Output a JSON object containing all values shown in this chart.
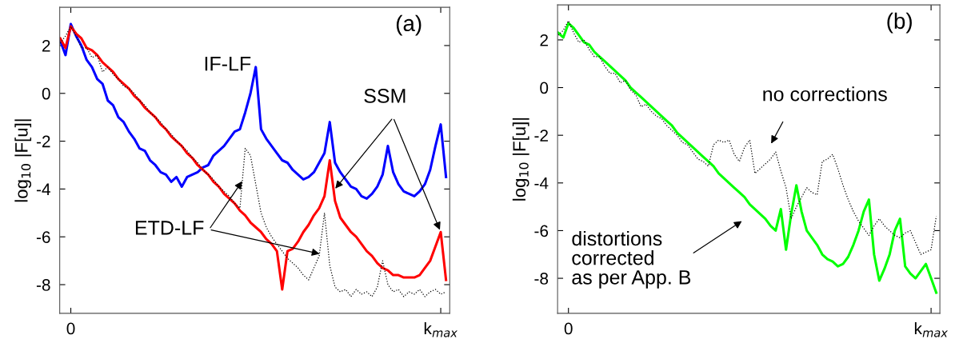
{
  "chart_data": [
    {
      "type": "line",
      "title": "(a)",
      "ylabel": "log$_{10}$ |F[u]|",
      "ylim": [
        -9.2,
        3.6
      ],
      "yticks": [
        -8,
        -6,
        -4,
        -2,
        0,
        2
      ],
      "grid": false,
      "categories": [
        null,
        null,
        "0",
        null,
        null,
        null,
        null,
        null,
        null,
        null,
        null,
        null,
        null,
        null,
        null,
        null,
        null,
        null,
        null,
        null,
        null,
        null,
        null,
        null,
        null,
        null,
        null,
        null,
        null,
        null,
        null,
        null,
        null,
        null,
        null,
        null,
        null,
        null,
        null,
        null,
        null,
        null,
        null,
        null,
        null,
        null,
        null,
        null,
        null,
        null,
        null,
        null,
        null,
        null,
        null,
        null,
        null,
        null,
        null,
        null,
        null,
        null,
        null,
        null,
        null,
        null,
        null,
        null,
        null,
        null,
        null,
        null,
        "k$_{max}$",
        null
      ],
      "series": [
        {
          "color": "#0000ff",
          "line_style": "solid",
          "values": [
            2.2,
            1.6,
            2.9,
            2.4,
            2.0,
            1.4,
            1.1,
            0.6,
            0.4,
            -0.3,
            -0.5,
            -1.0,
            -1.2,
            -1.6,
            -1.9,
            -2.3,
            -2.4,
            -2.8,
            -3.0,
            -3.3,
            -3.4,
            -3.7,
            -3.5,
            -3.9,
            -3.5,
            -3.4,
            -3.3,
            -3.1,
            -3.0,
            -2.6,
            -2.4,
            -2.2,
            -1.9,
            -1.6,
            -1.5,
            -0.8,
            0.0,
            1.1,
            -1.5,
            -1.9,
            -2.2,
            -2.5,
            -2.8,
            -2.9,
            -3.2,
            -3.4,
            -3.6,
            -3.5,
            -3.3,
            -2.9,
            -2.5,
            -1.2,
            -2.9,
            -3.3,
            -3.6,
            -3.9,
            -4.0,
            -4.3,
            -4.4,
            -4.2,
            -3.9,
            -3.4,
            -2.2,
            -3.3,
            -3.8,
            -4.1,
            -4.2,
            -4.3,
            -4.1,
            -3.8,
            -3.2,
            -2.2,
            -1.3,
            -3.5
          ]
        },
        {
          "color": "#ff0000",
          "line_style": "solid",
          "values": [
            2.3,
            1.9,
            2.8,
            2.5,
            2.3,
            1.9,
            1.8,
            1.6,
            1.3,
            1.1,
            0.9,
            0.6,
            0.4,
            0.2,
            -0.1,
            -0.3,
            -0.6,
            -0.8,
            -1.0,
            -1.3,
            -1.5,
            -1.8,
            -2.0,
            -2.2,
            -2.5,
            -2.7,
            -3.0,
            -3.2,
            -3.4,
            -3.7,
            -3.9,
            -4.2,
            -4.4,
            -4.6,
            -4.9,
            -5.1,
            -5.4,
            -5.6,
            -5.8,
            -6.1,
            -6.3,
            -6.6,
            -8.2,
            -6.6,
            -6.5,
            -6.2,
            -5.8,
            -5.5,
            -5.1,
            -4.8,
            -4.3,
            -2.8,
            -4.5,
            -5.2,
            -5.5,
            -5.8,
            -6.0,
            -6.3,
            -6.6,
            -6.8,
            -7.1,
            -7.3,
            -7.4,
            -7.6,
            -7.6,
            -7.7,
            -7.7,
            -7.7,
            -7.6,
            -7.3,
            -7.0,
            -6.4,
            -5.8,
            -7.8
          ]
        },
        {
          "color": "#000000",
          "line_style": "dotted",
          "values": [
            2.1,
            2.4,
            2.8,
            2.4,
            1.9,
            1.9,
            1.5,
            1.6,
            0.9,
            1.1,
            0.8,
            0.6,
            0.3,
            0.2,
            0.0,
            -0.3,
            -0.5,
            -0.8,
            -1.0,
            -1.2,
            -1.5,
            -1.7,
            -2.0,
            -2.2,
            -2.4,
            -2.7,
            -2.9,
            -3.2,
            -3.4,
            -3.6,
            -3.9,
            -4.1,
            -4.3,
            -4.6,
            -4.8,
            -2.3,
            -2.6,
            -3.8,
            -5.0,
            -5.6,
            -6.0,
            -6.3,
            -6.6,
            -6.9,
            -7.1,
            -7.3,
            -7.6,
            -7.8,
            -7.3,
            -6.8,
            -5.0,
            -7.2,
            -8.1,
            -8.3,
            -8.2,
            -8.5,
            -8.2,
            -8.4,
            -8.3,
            -8.5,
            -8.1,
            -7.0,
            -8.0,
            -8.3,
            -8.2,
            -8.5,
            -8.3,
            -8.4,
            -8.2,
            -8.5,
            -8.3,
            -8.2,
            -8.4,
            -8.3
          ]
        }
      ],
      "annotations": [
        "IF-LF",
        {
          "text": "SSM",
          "x": "k$_{max}$",
          "y": -5.8
        },
        {
          "text": "ETD-LF",
          "y": -3.6
        }
      ]
    },
    {
      "type": "line",
      "title": "(b)",
      "ylabel": "log$_{10}$ |F[u]|",
      "ylim": [
        -9.47,
        3.47
      ],
      "yticks": [
        -8,
        -6,
        -4,
        -2,
        0,
        2
      ],
      "grid": false,
      "categories": [
        null,
        null,
        "0",
        null,
        null,
        null,
        null,
        null,
        null,
        null,
        null,
        null,
        null,
        null,
        null,
        null,
        null,
        null,
        null,
        null,
        null,
        null,
        null,
        null,
        null,
        null,
        null,
        null,
        null,
        null,
        null,
        null,
        null,
        null,
        null,
        null,
        null,
        null,
        null,
        null,
        null,
        null,
        null,
        null,
        null,
        null,
        null,
        null,
        null,
        null,
        null,
        null,
        null,
        null,
        null,
        null,
        null,
        null,
        null,
        null,
        null,
        null,
        null,
        null,
        null,
        null,
        null,
        null,
        null,
        null,
        null,
        null,
        "k$_{max}$",
        null
      ],
      "series": [
        {
          "color": "#00ff00",
          "line_style": "solid",
          "values": [
            2.3,
            2.1,
            2.7,
            2.5,
            2.2,
            1.9,
            1.8,
            1.5,
            1.3,
            1.1,
            0.9,
            0.7,
            0.5,
            0.3,
            0.0,
            -0.2,
            -0.4,
            -0.6,
            -0.8,
            -1.0,
            -1.2,
            -1.4,
            -1.6,
            -1.9,
            -2.1,
            -2.3,
            -2.5,
            -2.7,
            -2.9,
            -3.1,
            -3.3,
            -3.6,
            -3.8,
            -4.0,
            -4.2,
            -4.4,
            -4.6,
            -4.9,
            -5.1,
            -5.3,
            -5.5,
            -5.8,
            -6.0,
            -5.1,
            -6.8,
            -5.3,
            -4.1,
            -5.2,
            -6.0,
            -6.3,
            -6.6,
            -7.0,
            -7.2,
            -7.3,
            -7.5,
            -7.4,
            -7.1,
            -6.6,
            -6.0,
            -5.2,
            -4.7,
            -7.0,
            -8.1,
            -7.6,
            -7.0,
            -6.0,
            -5.5,
            -7.5,
            -7.8,
            -8.0,
            -7.7,
            -7.4,
            -8.0,
            -8.6
          ]
        },
        {
          "color": "#000000",
          "line_style": "dotted",
          "values": [
            2.2,
            2.4,
            2.8,
            2.3,
            1.9,
            2.0,
            1.6,
            1.3,
            1.3,
            0.9,
            0.6,
            0.6,
            0.2,
            0.3,
            -0.1,
            -0.3,
            -0.8,
            -0.7,
            -1.0,
            -1.2,
            -1.3,
            -1.6,
            -1.8,
            -2.0,
            -2.3,
            -2.4,
            -2.7,
            -3.0,
            -3.1,
            -3.3,
            -2.4,
            -2.2,
            -2.3,
            -2.2,
            -2.8,
            -3.1,
            -2.5,
            -2.2,
            -3.6,
            -3.4,
            -3.2,
            -3.0,
            -2.7,
            -3.5,
            -4.2,
            -5.5,
            -5.0,
            -4.6,
            -4.2,
            -4.4,
            -4.5,
            -3.1,
            -3.0,
            -2.8,
            -3.4,
            -4.1,
            -4.7,
            -5.2,
            -5.6,
            -5.9,
            -6.2,
            -5.8,
            -5.5,
            -5.8,
            -6.0,
            -6.2,
            -6.3,
            -6.1,
            -6.0,
            -6.5,
            -7.0,
            -6.9,
            -6.8,
            -5.4
          ]
        }
      ],
      "annotations": [
        "no corrections",
        "distortions\ncorrected\nas per App. B"
      ]
    }
  ]
}
